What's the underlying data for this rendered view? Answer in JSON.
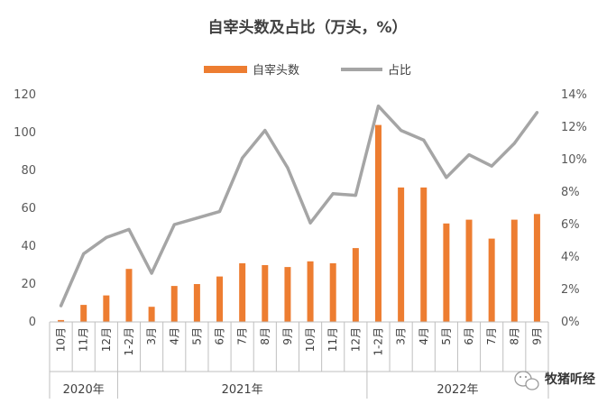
{
  "chart_data": {
    "type": "bar+line",
    "title": "自宰头数及占比（万头，%）",
    "categories": [
      "10月",
      "11月",
      "12月",
      "1-2月",
      "3月",
      "4月",
      "5月",
      "6月",
      "7月",
      "8月",
      "9月",
      "10月",
      "11月",
      "12月",
      "1-2月",
      "3月",
      "4月",
      "5月",
      "6月",
      "7月",
      "8月",
      "9月"
    ],
    "year_groups": [
      {
        "label": "2020年",
        "span": 3
      },
      {
        "label": "2021年",
        "span": 11
      },
      {
        "label": "2022年",
        "span": 8
      }
    ],
    "series": [
      {
        "name": "自宰头数",
        "type": "bar",
        "axis": "left",
        "color": "#ED7D31",
        "values": [
          1,
          9,
          14,
          28,
          8,
          19,
          20,
          24,
          31,
          30,
          29,
          32,
          31,
          39,
          104,
          71,
          71,
          52,
          54,
          44,
          54,
          57
        ]
      },
      {
        "name": "占比",
        "type": "line",
        "axis": "right",
        "color": "#A5A5A5",
        "values": [
          1.0,
          4.2,
          5.2,
          5.7,
          3.0,
          6.0,
          6.4,
          6.8,
          10.1,
          11.8,
          9.5,
          6.1,
          7.9,
          7.8,
          13.3,
          11.8,
          11.2,
          8.9,
          10.3,
          9.6,
          11.0,
          12.9
        ]
      }
    ],
    "y_left": {
      "min": 0,
      "max": 120,
      "ticks": [
        "0",
        "20",
        "40",
        "60",
        "80",
        "100",
        "120"
      ]
    },
    "y_right": {
      "min": 0,
      "max": 14,
      "ticks": [
        "0%",
        "2%",
        "4%",
        "6%",
        "8%",
        "10%",
        "12%",
        "14%"
      ]
    },
    "grid": false,
    "legend_position": "top-center"
  },
  "watermark": {
    "text": "牧猪听经",
    "icon": "wechat-icon"
  }
}
